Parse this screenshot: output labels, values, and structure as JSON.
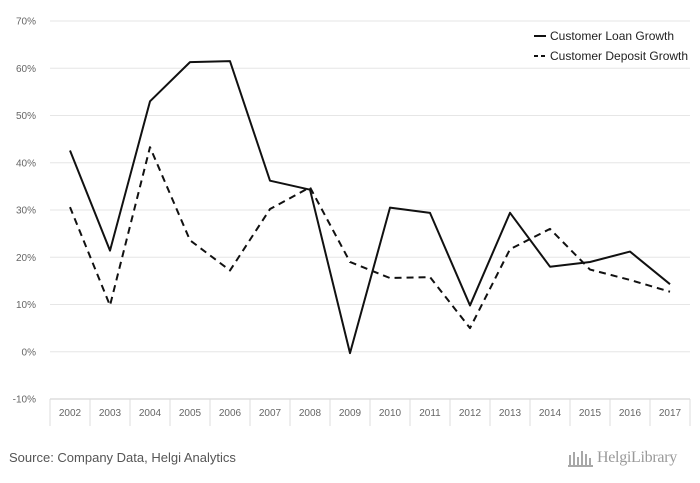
{
  "chart_data": {
    "type": "line",
    "categories": [
      "2002",
      "2003",
      "2004",
      "2005",
      "2006",
      "2007",
      "2008",
      "2009",
      "2010",
      "2011",
      "2012",
      "2013",
      "2014",
      "2015",
      "2016",
      "2017"
    ],
    "series": [
      {
        "name": "Customer Loan Growth",
        "style": "solid",
        "color": "#111111",
        "values": [
          42.6,
          21.4,
          53.0,
          61.3,
          61.5,
          36.2,
          34.3,
          -0.3,
          30.5,
          29.4,
          9.8,
          29.4,
          18.0,
          19.0,
          21.2,
          14.3
        ]
      },
      {
        "name": "Customer Deposit Growth",
        "style": "dashed",
        "color": "#111111",
        "values": [
          30.6,
          9.8,
          43.3,
          23.6,
          17.2,
          30.2,
          34.8,
          19.0,
          15.6,
          15.8,
          5.0,
          21.7,
          26.0,
          17.4,
          15.2,
          12.7
        ]
      }
    ],
    "y_ticks": [
      "70%",
      "60%",
      "50%",
      "40%",
      "30%",
      "20%",
      "10%",
      "0%",
      "-10%"
    ],
    "ylim": [
      -10,
      70
    ],
    "grid": true,
    "legend_position": "top-right",
    "source": "Source: Company Data, Helgi Analytics",
    "brand": "HelgiLibrary"
  }
}
